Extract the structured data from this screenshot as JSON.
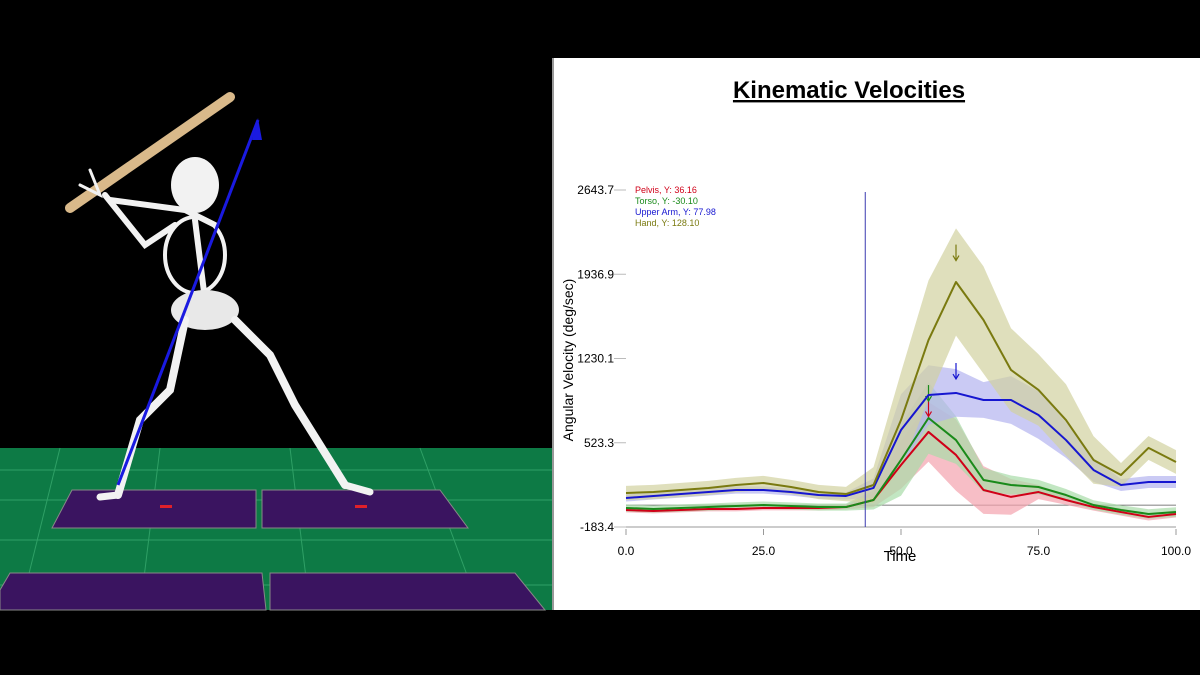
{
  "chart_data": {
    "type": "line",
    "title": "Kinematic Velocities",
    "x_label": "Time",
    "y_label": "Angular Velocity (deg/sec)",
    "x": [
      0,
      5,
      10,
      15,
      20,
      25,
      30,
      35,
      40,
      45,
      50,
      55,
      60,
      65,
      70,
      75,
      80,
      85,
      90,
      95,
      100
    ],
    "xlim": [
      0,
      100
    ],
    "xticks": [
      {
        "value": 0,
        "label": "0.0"
      },
      {
        "value": 25,
        "label": "25.0"
      },
      {
        "value": 50,
        "label": "50.0"
      },
      {
        "value": 75,
        "label": "75.0"
      },
      {
        "value": 100,
        "label": "100.0"
      }
    ],
    "ylim": [
      -183.4,
      2643.7
    ],
    "yticks": [
      -183.4,
      523.3,
      1230.1,
      1936.9,
      2643.7
    ],
    "cursor_x": 43.5,
    "reference_y": 0,
    "series": [
      {
        "name": "Pelvis, Y: 36.16",
        "color": "#d00018",
        "band_color": "#f4a3ae",
        "values": [
          -41,
          -49,
          -41,
          -32,
          -32,
          -24,
          -24,
          -24,
          -16,
          43,
          337,
          614,
          421,
          127,
          69,
          110,
          43,
          -16,
          -58,
          -99,
          -74
        ],
        "sd": [
          20,
          20,
          20,
          20,
          20,
          20,
          20,
          20,
          20,
          60,
          200,
          250,
          300,
          200,
          150,
          60,
          40,
          30,
          30,
          30,
          30
        ]
      },
      {
        "name": "Torso, Y: -30.10",
        "color": "#1a8a1a",
        "band_color": "#a8dca8",
        "values": [
          -24,
          -32,
          -24,
          -16,
          -7,
          1,
          -7,
          -16,
          -16,
          43,
          379,
          731,
          546,
          211,
          169,
          152,
          85,
          1,
          -41,
          -74,
          -58
        ],
        "sd": [
          30,
          30,
          30,
          30,
          30,
          30,
          30,
          30,
          30,
          80,
          300,
          300,
          200,
          100,
          80,
          60,
          50,
          40,
          40,
          40,
          40
        ]
      },
      {
        "name": "Upper Arm, Y: 77.98",
        "color": "#1616d0",
        "band_color": "#b4b4f0",
        "values": [
          60,
          77,
          93,
          110,
          127,
          127,
          110,
          85,
          77,
          144,
          630,
          924,
          941,
          882,
          882,
          756,
          546,
          295,
          169,
          194,
          194
        ],
        "sd": [
          30,
          30,
          30,
          30,
          30,
          30,
          30,
          30,
          30,
          80,
          300,
          250,
          200,
          150,
          200,
          200,
          150,
          100,
          50,
          50,
          50
        ]
      },
      {
        "name": "Hand, Y: 128.10",
        "color": "#7a7a10",
        "band_color": "#d2d2a0",
        "values": [
          102,
          110,
          127,
          144,
          169,
          186,
          152,
          110,
          93,
          169,
          714,
          1385,
          1872,
          1553,
          1134,
          966,
          714,
          379,
          253,
          480,
          362
        ],
        "sd": [
          60,
          60,
          60,
          60,
          60,
          60,
          60,
          60,
          60,
          150,
          400,
          500,
          450,
          450,
          350,
          300,
          300,
          200,
          100,
          100,
          100
        ]
      }
    ]
  }
}
